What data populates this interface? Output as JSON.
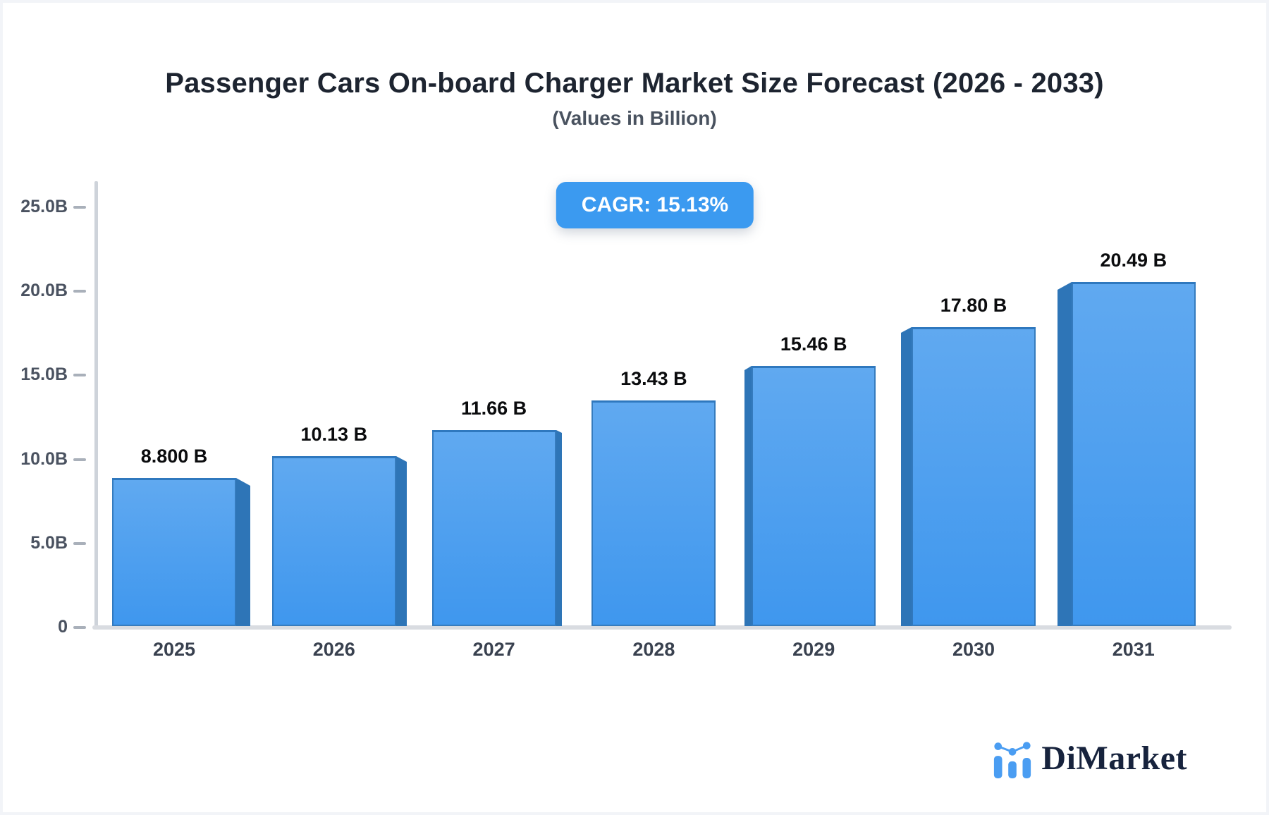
{
  "header": {
    "title": "Passenger Cars On-board Charger Market Size Forecast (2026 - 2033)",
    "subtitle": "(Values in Billion)"
  },
  "badge": {
    "label": "CAGR: 15.13%",
    "bg_color": "#3b9af0",
    "text_color": "#ffffff"
  },
  "chart_data": {
    "type": "bar",
    "title": "Passenger Cars On-board Charger Market Size Forecast (2026 - 2033)",
    "subtitle": "(Values in Billion)",
    "cagr": "15.13%",
    "categories": [
      "2025",
      "2026",
      "2027",
      "2028",
      "2029",
      "2030",
      "2031"
    ],
    "values": [
      8.8,
      10.13,
      11.66,
      13.43,
      15.46,
      17.8,
      20.49
    ],
    "value_labels": [
      "8.800 B",
      "10.13 B",
      "11.66 B",
      "13.43 B",
      "15.46 B",
      "17.80 B",
      "20.49 B"
    ],
    "xlabel": "",
    "ylabel": "",
    "ylim": [
      0,
      25
    ],
    "yticks": [
      {
        "value": 0,
        "label": "0"
      },
      {
        "value": 5,
        "label": "5.0B"
      },
      {
        "value": 10,
        "label": "10.0B"
      },
      {
        "value": 15,
        "label": "15.0B"
      },
      {
        "value": 20,
        "label": "20.0B"
      },
      {
        "value": 25,
        "label": "25.0B"
      }
    ],
    "grid": "off",
    "legend": "none",
    "style": "pseudo-3d-bars-center-perspective"
  },
  "palette": {
    "bar_front_top": "#60a9f0",
    "bar_front_bottom": "#3f97ee",
    "bar_side": "#2e75b7",
    "axis_line": "#ced3da",
    "baseline": "#d9dce1",
    "tick_dash": "#a9b0ba"
  },
  "footer": {
    "brand": "DiMarket",
    "brand_color": "#17233d",
    "logo_icon": "mini-bar-chart-icon",
    "logo_icon_color": "#4a9df2"
  }
}
